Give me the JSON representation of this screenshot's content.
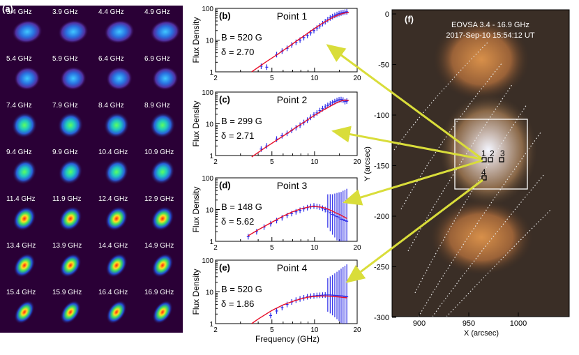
{
  "colors": {
    "model_line": "#e8102a",
    "obs_points": "#2a2ae8",
    "arrow": "#d9dd3a",
    "image_bg": "#2a0036",
    "map_box": "#ffffff"
  },
  "panel_a": {
    "label": "(a)",
    "frequencies": [
      "3.4 GHz",
      "3.9 GHz",
      "4.4 GHz",
      "4.9 GHz",
      "5.4 GHz",
      "5.9 GHz",
      "6.4 GHz",
      "6.9 GHz",
      "7.4 GHz",
      "7.9 GHz",
      "8.4 GHz",
      "8.9 GHz",
      "9.4 GHz",
      "9.9 GHz",
      "10.4 GHz",
      "10.9 GHz",
      "11.4 GHz",
      "11.9 GHz",
      "12.4 GHz",
      "12.9 GHz",
      "13.4 GHz",
      "13.9 GHz",
      "14.4 GHz",
      "14.9 GHz",
      "15.4 GHz",
      "15.9 GHz",
      "16.4 GHz",
      "16.9 GHz"
    ]
  },
  "panel_f": {
    "label": "(f)",
    "title_line1": "EOVSA 3.4 - 16.9 GHz",
    "title_line2": "2017-Sep-10  15:54:12 UT",
    "xlabel": "X (arcsec)",
    "ylabel": "Y (arcsec)",
    "xticks": [
      "900",
      "950",
      "1000"
    ],
    "yticks": [
      "0",
      "-50",
      "-100",
      "-150",
      "-200",
      "-250",
      "-300"
    ],
    "point_labels": [
      "1",
      "2",
      "3",
      "4"
    ]
  },
  "chart_data": [
    {
      "type": "line",
      "panel": "(b)",
      "title": "Point 1",
      "ylabel": "Flux Density",
      "xlabel": "",
      "xscale": "log",
      "yscale": "log",
      "xlim": [
        2,
        20
      ],
      "ylim": [
        1,
        100
      ],
      "xticks": [
        "2",
        "5",
        "10",
        "20"
      ],
      "yticks": [
        "1",
        "10",
        "100"
      ],
      "annotations": [
        "B = 520 G",
        "δ = 2.70"
      ],
      "model": {
        "x": [
          3.6,
          4.5,
          5.5,
          6.5,
          7.5,
          8.5,
          9.5,
          10.5,
          11.5,
          12.5,
          13.5,
          14.5,
          15.5,
          16.5,
          17.5
        ],
        "y": [
          1.0,
          2.0,
          3.6,
          6.0,
          9.5,
          14,
          20,
          27,
          35,
          43,
          52,
          60,
          67,
          72,
          75
        ]
      },
      "observed": {
        "x": [
          4.2,
          4.6,
          5.4,
          5.9,
          6.4,
          6.9,
          7.4,
          7.9,
          8.4,
          8.9,
          9.4,
          9.9,
          10.4,
          10.9,
          11.4,
          11.9,
          12.4,
          12.9,
          13.4,
          13.9,
          14.4,
          14.9,
          15.4,
          15.9,
          16.4,
          16.9
        ],
        "y": [
          1.5,
          1.4,
          3.5,
          4.5,
          5.5,
          7.0,
          8.5,
          10,
          12,
          14,
          17,
          20,
          24,
          28,
          33,
          38,
          44,
          50,
          55,
          60,
          64,
          68,
          71,
          74,
          76,
          78
        ]
      }
    },
    {
      "type": "line",
      "panel": "(c)",
      "title": "Point 2",
      "ylabel": "Flux Density",
      "xlabel": "",
      "xscale": "log",
      "yscale": "log",
      "xlim": [
        2,
        20
      ],
      "ylim": [
        1,
        100
      ],
      "xticks": [
        "2",
        "5",
        "10",
        "20"
      ],
      "yticks": [
        "1",
        "10",
        "100"
      ],
      "annotations": [
        "B = 299 G",
        "δ = 2.71"
      ],
      "model": {
        "x": [
          3.6,
          4.5,
          5.5,
          6.5,
          7.5,
          8.5,
          9.5,
          10.5,
          11.5,
          12.5,
          13.5,
          14.5,
          15.5,
          16.5,
          17.5
        ],
        "y": [
          0.9,
          1.8,
          3.2,
          5.2,
          8,
          11.5,
          16,
          21,
          27,
          33,
          40,
          47,
          53,
          56,
          55
        ]
      },
      "observed": {
        "x": [
          4.2,
          4.6,
          5.4,
          5.9,
          6.4,
          6.9,
          7.4,
          7.9,
          8.4,
          8.9,
          9.4,
          9.9,
          10.4,
          10.9,
          11.4,
          11.9,
          12.4,
          12.9,
          13.4,
          13.9,
          14.4,
          14.9,
          15.4,
          15.9,
          16.4,
          16.9
        ],
        "y": [
          1.6,
          2.0,
          3.3,
          4.2,
          5.0,
          6.2,
          7.5,
          9,
          11,
          13,
          16,
          19,
          22,
          26,
          30,
          34,
          38,
          42,
          46,
          50,
          54,
          57,
          58,
          56,
          50,
          52
        ]
      }
    },
    {
      "type": "line",
      "panel": "(d)",
      "title": "Point 3",
      "ylabel": "Flux Density",
      "xlabel": "",
      "xscale": "log",
      "yscale": "log",
      "xlim": [
        2,
        20
      ],
      "ylim": [
        1,
        100
      ],
      "xticks": [
        "2",
        "5",
        "10",
        "20"
      ],
      "yticks": [
        "1",
        "10",
        "100"
      ],
      "annotations": [
        "B = 148 G",
        "δ = 5.62"
      ],
      "model": {
        "x": [
          3.4,
          4.0,
          5.0,
          6.0,
          7.0,
          8.0,
          9.0,
          10.0,
          11.0,
          12.0,
          13.0,
          14.0,
          15.0,
          16.0,
          17.0
        ],
        "y": [
          1.5,
          2.3,
          4.0,
          6.2,
          8.5,
          10.5,
          12,
          12.5,
          12,
          11,
          9.5,
          8,
          7,
          6,
          5.2
        ]
      },
      "observed": {
        "x": [
          3.4,
          3.9,
          4.4,
          4.9,
          5.4,
          5.9,
          6.4,
          6.9,
          7.4,
          7.9,
          8.4,
          8.9,
          9.4,
          9.9,
          10.4,
          10.9,
          11.4,
          11.9,
          12.4,
          12.9,
          13.4,
          13.9,
          14.4,
          14.9,
          15.4,
          15.9,
          16.4,
          16.9
        ],
        "y": [
          1.4,
          2.0,
          2.8,
          3.6,
          4.5,
          5.5,
          6.5,
          7.5,
          8.5,
          9.5,
          10.5,
          11.5,
          12.5,
          13,
          12.5,
          12,
          11,
          10,
          9,
          8,
          7,
          6.5,
          6,
          5.5,
          5,
          4.8,
          4.5,
          4.3
        ]
      }
    },
    {
      "type": "line",
      "panel": "(e)",
      "title": "Point 4",
      "ylabel": "Flux Density",
      "xlabel": "Frequency (GHz)",
      "xscale": "log",
      "yscale": "log",
      "xlim": [
        2,
        20
      ],
      "ylim": [
        1,
        100
      ],
      "xticks": [
        "2",
        "5",
        "10",
        "20"
      ],
      "yticks": [
        "1",
        "10",
        "100"
      ],
      "annotations": [
        "B = 520 G",
        "δ = 1.86"
      ],
      "model": {
        "x": [
          3.6,
          4.0,
          5.0,
          6.0,
          7.0,
          8.0,
          9.0,
          10.0,
          11.0,
          12.0,
          13.0,
          14.0,
          15.0,
          16.0,
          17.0
        ],
        "y": [
          1.0,
          1.4,
          2.6,
          3.9,
          5.0,
          6.0,
          6.8,
          7.2,
          7.4,
          7.4,
          7.3,
          7.1,
          6.9,
          6.7,
          6.5
        ]
      },
      "observed": {
        "x": [
          4.9,
          5.4,
          5.9,
          6.4,
          6.9,
          7.4,
          7.9,
          8.4,
          8.9,
          9.4,
          9.9,
          10.4,
          10.9,
          11.4,
          11.9,
          12.4,
          12.9,
          13.4,
          13.9,
          14.4,
          14.9,
          15.4,
          15.9,
          16.4,
          16.9
        ],
        "y": [
          1.8,
          2.5,
          3.2,
          4.0,
          4.8,
          5.5,
          6.0,
          6.5,
          7.0,
          7.3,
          7.5,
          7.7,
          7.8,
          7.9,
          8.0,
          8.0,
          8.0,
          7.9,
          7.8,
          7.7,
          7.6,
          7.5,
          7.4,
          7.2,
          7.0
        ]
      }
    }
  ]
}
